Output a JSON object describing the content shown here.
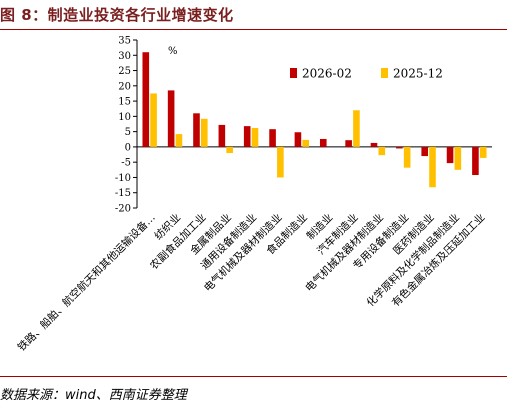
{
  "title": "图 8：制造业投资各行业增速变化",
  "source": "数据来源：wind、西南证券整理",
  "chart_data": {
    "type": "bar",
    "unit_label": "%",
    "ylim": [
      -20,
      35
    ],
    "yticks": [
      35,
      30,
      25,
      20,
      15,
      10,
      5,
      0,
      -5,
      -10,
      -15,
      -20
    ],
    "legend_position": "top-right",
    "categories": [
      "铁路、船舶、航空航天和其他运输设备…",
      "纺织业",
      "农副食品加工业",
      "金属制品业",
      "通用设备制造业",
      "电气机械及器材制造业",
      "食品制造业",
      "制造业",
      "汽车制造业",
      "电气机械及器材制造业",
      "专用设备制造业",
      "医药制造业",
      "化学原料及化学制品制造业",
      "有色金属冶炼及压延加工业"
    ],
    "series": [
      {
        "name": "2026-02",
        "color": "#c00000",
        "values": [
          31,
          18.5,
          11,
          7.2,
          6.8,
          5.8,
          4.8,
          2.6,
          2.2,
          1.3,
          -0.5,
          -3,
          -5.3,
          -9.2
        ]
      },
      {
        "name": "2025-12",
        "color": "#ffc000",
        "values": [
          17.5,
          4.2,
          9.2,
          -2,
          6.2,
          -10,
          2.3,
          0,
          12,
          -2.7,
          -6.8,
          -13.2,
          -7.5,
          -3.6
        ]
      }
    ]
  }
}
